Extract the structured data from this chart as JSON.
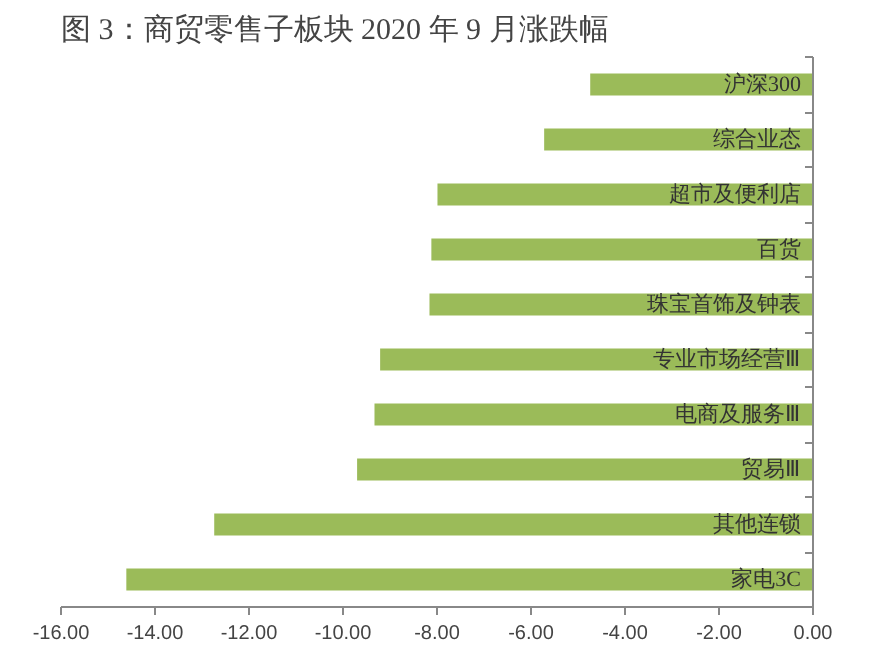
{
  "chart_data": {
    "type": "bar",
    "orientation": "horizontal",
    "title": "图 3：商贸零售子板块 2020 年 9 月涨跌幅",
    "categories": [
      "沪深300",
      "综合业态",
      "超市及便利店",
      "百货",
      "珠宝首饰及钟表",
      "专业市场经营Ⅲ",
      "电商及服务Ⅲ",
      "贸易Ⅲ",
      "其他连锁",
      "家电3C"
    ],
    "values": [
      -4.74,
      -5.72,
      -7.99,
      -8.12,
      -8.16,
      -9.21,
      -9.33,
      -9.7,
      -12.74,
      -14.61
    ],
    "color": "#9bbb59",
    "xlim": [
      -16,
      0
    ],
    "xticks": [
      {
        "value": -16,
        "label": "-16.00"
      },
      {
        "value": -14,
        "label": "-14.00"
      },
      {
        "value": -12,
        "label": "-12.00"
      },
      {
        "value": -10,
        "label": "-10.00"
      },
      {
        "value": -8,
        "label": "-8.00"
      },
      {
        "value": -6,
        "label": "-6.00"
      },
      {
        "value": -4,
        "label": "-4.00"
      },
      {
        "value": -2,
        "label": "-2.00"
      },
      {
        "value": 0,
        "label": "0.00"
      }
    ],
    "grid": false
  }
}
